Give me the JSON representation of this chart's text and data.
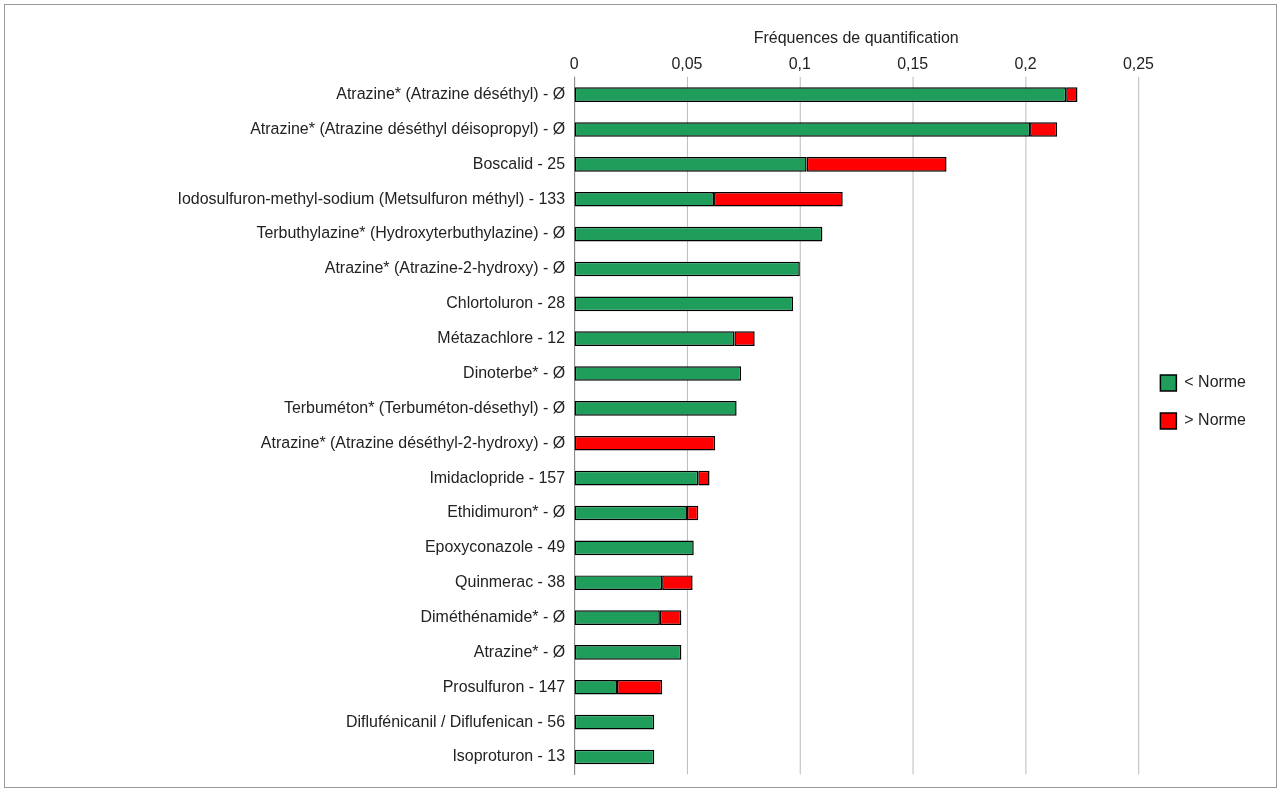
{
  "chart_data": {
    "type": "bar",
    "orientation": "horizontal",
    "stacked": true,
    "xlabel": "Fréquences de quantification",
    "categories": [
      "Atrazine* (Atrazine déséthyl) - Ø",
      "Atrazine* (Atrazine déséthyl déisopropyl) - Ø",
      "Boscalid - 25",
      "Iodosulfuron-methyl-sodium (Metsulfuron méthyl) - 133",
      "Terbuthylazine* (Hydroxyterbuthylazine) - Ø",
      "Atrazine* (Atrazine-2-hydroxy) - Ø",
      "Chlortoluron - 28",
      "Métazachlore - 12",
      "Dinoterbe* - Ø",
      "Terbuméton* (Terbuméton-désethyl) - Ø",
      "Atrazine* (Atrazine déséthyl-2-hydroxy) - Ø",
      "Imidaclopride - 157",
      "Ethidimuron* - Ø",
      "Epoxyconazole - 49",
      "Quinmerac - 38",
      "Diméthénamide* - Ø",
      "Atrazine* - Ø",
      "Prosulfuron - 147",
      "Diflufénicanil / Diflufenican - 56",
      "Isoproturon - 13"
    ],
    "series": [
      {
        "name": "< Norme",
        "color": "#1e9e5a",
        "values": [
          0.218,
          0.202,
          0.103,
          0.062,
          0.11,
          0.1,
          0.097,
          0.071,
          0.074,
          0.072,
          null,
          0.055,
          0.05,
          0.053,
          0.039,
          0.038,
          0.0475,
          0.019,
          0.0355,
          0.0355
        ]
      },
      {
        "name": "> Norme",
        "color": "#ff0000",
        "values": [
          0.005,
          0.012,
          0.062,
          0.057,
          null,
          null,
          null,
          0.009,
          null,
          null,
          0.0625,
          0.005,
          0.005,
          null,
          0.0135,
          0.0095,
          null,
          0.02,
          null,
          null
        ]
      }
    ],
    "xlim": [
      0,
      0.25
    ],
    "xticks": [
      0,
      {
        "value": 0.05,
        "label": "0,05"
      },
      {
        "value": 0.1,
        "label": "0,1"
      },
      {
        "value": 0.15,
        "label": "0,15"
      },
      {
        "value": 0.2,
        "label": "0,2"
      },
      {
        "value": 0.25,
        "label": "0,25"
      }
    ],
    "grid": "x",
    "legend": "right"
  }
}
